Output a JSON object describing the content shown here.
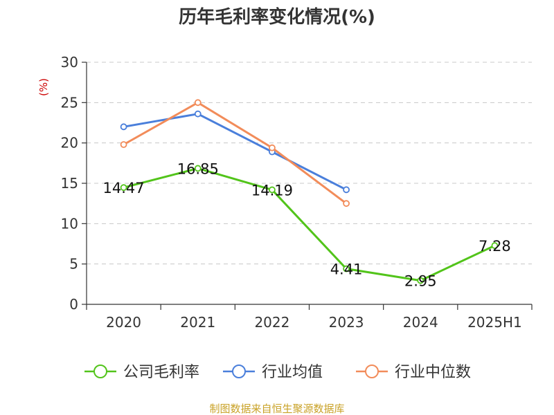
{
  "chart_data": {
    "type": "line",
    "title": "历年毛利率变化情况(%)",
    "ylabel": "(%)",
    "categories": [
      "2020",
      "2021",
      "2022",
      "2023",
      "2024",
      "2025H1"
    ],
    "ylim": [
      0,
      30
    ],
    "yticks": [
      0,
      5,
      10,
      15,
      20,
      25,
      30
    ],
    "grid": true,
    "legend_position": "bottom",
    "series": [
      {
        "name": "公司毛利率",
        "color": "#52c41a",
        "values": [
          14.47,
          16.85,
          14.19,
          4.41,
          2.95,
          7.28
        ],
        "labels": [
          "14.47",
          "16.85",
          "14.19",
          "4.41",
          "2.95",
          "7.28"
        ]
      },
      {
        "name": "行业均值",
        "color": "#4a7fdb",
        "values": [
          22.0,
          23.6,
          18.9,
          14.2,
          null,
          null
        ]
      },
      {
        "name": "行业中位数",
        "color": "#f28c5a",
        "values": [
          19.8,
          25.0,
          19.4,
          12.5,
          null,
          null
        ]
      }
    ]
  },
  "source": "制图数据来自恒生聚源数据库"
}
